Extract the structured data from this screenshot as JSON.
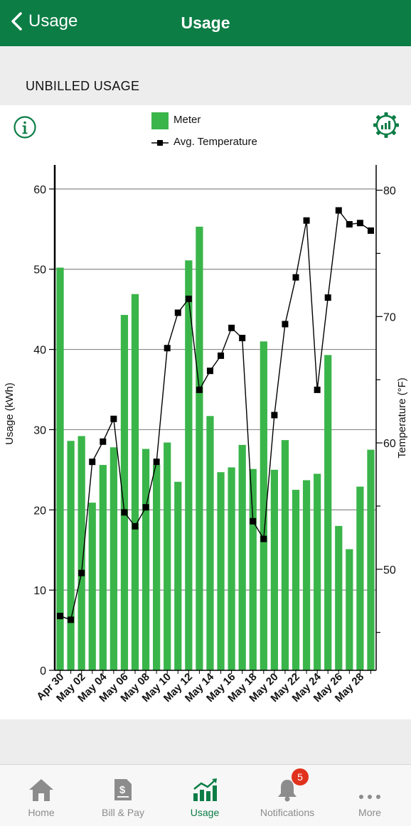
{
  "header": {
    "back_label": "Usage",
    "title": "Usage"
  },
  "section": {
    "label": "UNBILLED USAGE"
  },
  "legend": {
    "meter": "Meter",
    "temperature": "Avg. Temperature"
  },
  "colors": {
    "brand": "#0b7d45",
    "bar": "#3ab54a",
    "badge": "#e0321c"
  },
  "chart_data": {
    "type": "bar",
    "categories": [
      "Apr 30",
      "May 01",
      "May 02",
      "May 03",
      "May 04",
      "May 05",
      "May 06",
      "May 07",
      "May 08",
      "May 09",
      "May 10",
      "May 11",
      "May 12",
      "May 13",
      "May 14",
      "May 15",
      "May 16",
      "May 17",
      "May 18",
      "May 19",
      "May 20",
      "May 21",
      "May 22",
      "May 23",
      "May 24",
      "May 25",
      "May 26",
      "May 27",
      "May 28",
      "May 29"
    ],
    "tick_labels": [
      "Apr 30",
      "May 02",
      "May 04",
      "May 06",
      "May 08",
      "May 10",
      "May 12",
      "May 14",
      "May 16",
      "May 18",
      "May 20",
      "May 22",
      "May 24",
      "May 26",
      "May 28"
    ],
    "series": [
      {
        "name": "Meter",
        "axis": "left",
        "type": "bar",
        "values": [
          50.2,
          28.6,
          29.2,
          20.9,
          25.6,
          27.8,
          44.3,
          46.9,
          27.6,
          25.6,
          28.4,
          23.5,
          51.1,
          55.3,
          31.7,
          24.7,
          25.3,
          28.1,
          25.1,
          41.0,
          25.0,
          28.7,
          22.5,
          23.7,
          24.5,
          39.3,
          18.0,
          15.1,
          22.9,
          27.5
        ]
      },
      {
        "name": "Avg. Temperature",
        "axis": "right",
        "type": "line",
        "values": [
          46.3,
          46.0,
          49.7,
          58.5,
          60.1,
          61.9,
          54.5,
          53.4,
          54.9,
          58.5,
          67.5,
          70.3,
          71.4,
          64.2,
          65.7,
          66.9,
          69.1,
          68.3,
          53.8,
          52.4,
          62.2,
          69.4,
          73.1,
          77.6,
          64.2,
          71.5,
          78.4,
          77.3,
          77.4,
          76.8
        ]
      }
    ],
    "ylabel": "Usage (kWh)",
    "y2label": "Temperature (°F)",
    "ylim": [
      0,
      63
    ],
    "yticks": [
      0,
      10,
      20,
      30,
      40,
      50,
      60
    ],
    "y2lim": [
      42,
      82
    ],
    "y2ticks": [
      50,
      60,
      70,
      80
    ],
    "grid": true,
    "legend_position": "top"
  },
  "tabs": [
    {
      "label": "Home",
      "icon": "home-icon"
    },
    {
      "label": "Bill & Pay",
      "icon": "bill-icon"
    },
    {
      "label": "Usage",
      "icon": "usage-chart-icon",
      "active": true
    },
    {
      "label": "Notifications",
      "icon": "bell-icon",
      "badge": "5"
    },
    {
      "label": "More",
      "icon": "more-icon"
    }
  ]
}
